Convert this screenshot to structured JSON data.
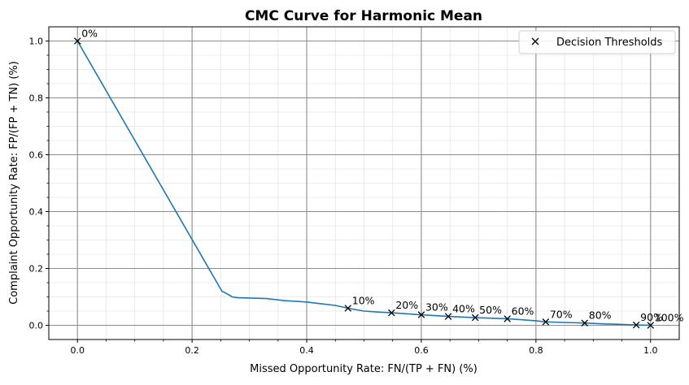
{
  "chart_data": {
    "type": "line",
    "title": "CMC Curve for Harmonic Mean",
    "xlabel": "Missed Opportunity Rate: FN/(TP + FN) (%)",
    "ylabel": "Complaint Opportunity Rate: FP/(FP + TN) (%)",
    "xlim": [
      -0.05,
      1.05
    ],
    "ylim": [
      -0.05,
      1.05
    ],
    "x_ticks": [
      0.0,
      0.2,
      0.4,
      0.6,
      0.8,
      1.0
    ],
    "x_tick_labels": [
      "0.0",
      "0.2",
      "0.4",
      "0.6",
      "0.8",
      "1.0"
    ],
    "y_ticks": [
      0.0,
      0.2,
      0.4,
      0.6,
      0.8,
      1.0
    ],
    "y_tick_labels": [
      "0.0",
      "0.2",
      "0.4",
      "0.6",
      "0.8",
      "1.0"
    ],
    "grid": {
      "major": true,
      "minor": true
    },
    "legend_position": "top-right",
    "colors": {
      "curve": "#1f77b4",
      "markers": "#000000",
      "major_grid": "#8c8c8c",
      "minor_grid": "#e6e6e6"
    },
    "series": [
      {
        "points": [
          [
            0.0,
            1.0
          ],
          [
            0.252,
            0.12
          ],
          [
            0.26,
            0.112
          ],
          [
            0.27,
            0.1
          ],
          [
            0.28,
            0.097
          ],
          [
            0.3,
            0.096
          ],
          [
            0.33,
            0.094
          ],
          [
            0.36,
            0.087
          ],
          [
            0.4,
            0.082
          ],
          [
            0.42,
            0.077
          ],
          [
            0.45,
            0.07
          ],
          [
            0.472,
            0.06
          ],
          [
            0.5,
            0.05
          ],
          [
            0.53,
            0.046
          ],
          [
            0.548,
            0.044
          ],
          [
            0.6,
            0.037
          ],
          [
            0.647,
            0.031
          ],
          [
            0.694,
            0.027
          ],
          [
            0.75,
            0.023
          ],
          [
            0.8,
            0.016
          ],
          [
            0.817,
            0.012
          ],
          [
            0.85,
            0.01
          ],
          [
            0.885,
            0.008
          ],
          [
            0.92,
            0.005
          ],
          [
            0.95,
            0.003
          ],
          [
            0.975,
            0.001
          ],
          [
            1.0,
            0.0
          ]
        ]
      },
      {
        "name": "Decision Thresholds",
        "marker": "x",
        "points": [
          {
            "x": 0.0,
            "y": 1.0,
            "label": "0%"
          },
          {
            "x": 0.472,
            "y": 0.06,
            "label": "10%"
          },
          {
            "x": 0.548,
            "y": 0.044,
            "label": "20%"
          },
          {
            "x": 0.6,
            "y": 0.037,
            "label": "30%"
          },
          {
            "x": 0.647,
            "y": 0.031,
            "label": "40%"
          },
          {
            "x": 0.694,
            "y": 0.027,
            "label": "50%"
          },
          {
            "x": 0.75,
            "y": 0.023,
            "label": "60%"
          },
          {
            "x": 0.817,
            "y": 0.012,
            "label": "70%"
          },
          {
            "x": 0.885,
            "y": 0.008,
            "label": "80%"
          },
          {
            "x": 0.975,
            "y": 0.001,
            "label": "90%"
          },
          {
            "x": 1.0,
            "y": 0.0,
            "label": "100%"
          }
        ]
      }
    ]
  }
}
